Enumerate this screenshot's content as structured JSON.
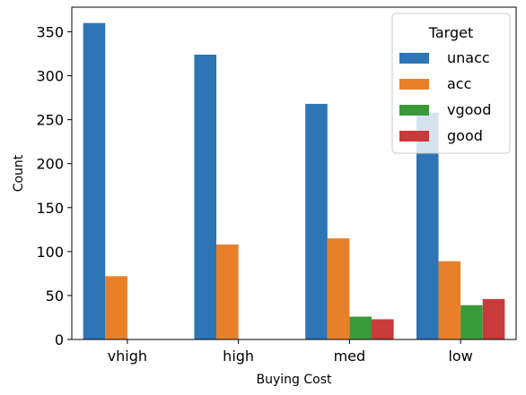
{
  "chart_data": {
    "type": "bar",
    "xlabel": "Buying Cost",
    "ylabel": "Count",
    "categories": [
      "vhigh",
      "high",
      "med",
      "low"
    ],
    "ylim": [
      0,
      378
    ],
    "yticks": [
      0,
      50,
      100,
      150,
      200,
      250,
      300,
      350
    ],
    "grid": false,
    "legend": {
      "title": "Target",
      "placement": "top-right"
    },
    "series": [
      {
        "name": "unacc",
        "color": "#2e75b6",
        "values": [
          360,
          324,
          268,
          258
        ]
      },
      {
        "name": "acc",
        "color": "#e8802a",
        "values": [
          72,
          108,
          115,
          89
        ]
      },
      {
        "name": "vgood",
        "color": "#3a9a3a",
        "values": [
          0,
          0,
          26,
          39
        ]
      },
      {
        "name": "good",
        "color": "#c93a3a",
        "values": [
          0,
          0,
          23,
          46
        ]
      }
    ]
  }
}
